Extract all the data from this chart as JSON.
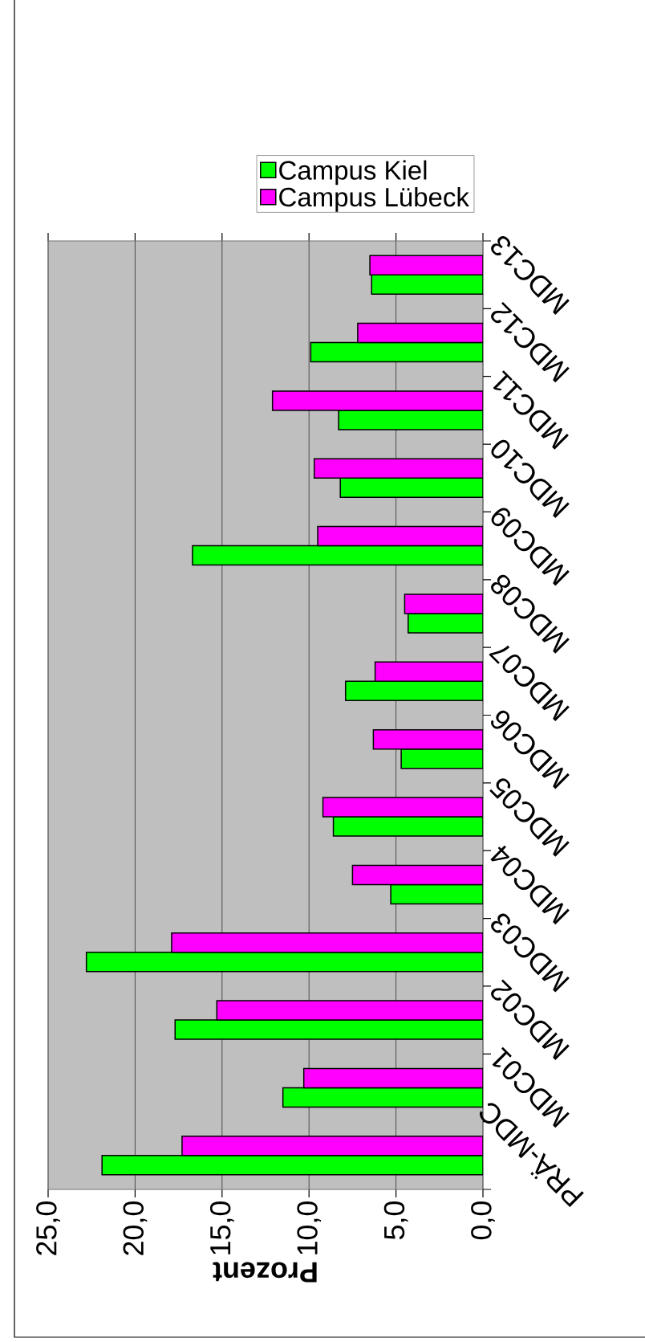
{
  "chart_data": {
    "type": "bar",
    "orientation": "horizontal",
    "xlabel": "Prozent",
    "categories": [
      "MDC13",
      "MDC12",
      "MDC11",
      "MDC10",
      "MDC09",
      "MDC08",
      "MDC07",
      "MDC06",
      "MDC05",
      "MDC04",
      "MDC03",
      "MDC02",
      "MDC01",
      "PRÄ-MDC"
    ],
    "series": [
      {
        "name": "Campus Kiel",
        "color": "#00ff00",
        "values": [
          6.4,
          9.9,
          8.3,
          8.2,
          16.7,
          4.3,
          7.9,
          4.7,
          8.6,
          5.3,
          22.8,
          17.7,
          11.5,
          21.9
        ]
      },
      {
        "name": "Campus Lübeck",
        "color": "#ff00ff",
        "values": [
          6.5,
          7.2,
          12.1,
          9.7,
          9.5,
          4.5,
          6.2,
          6.3,
          9.2,
          7.5,
          17.9,
          15.3,
          10.3,
          17.3
        ]
      }
    ],
    "xlim": [
      25,
      0
    ],
    "xticks": [
      {
        "value": 25,
        "label": "25,0"
      },
      {
        "value": 20,
        "label": "20,0"
      },
      {
        "value": 15,
        "label": "15,0"
      },
      {
        "value": 10,
        "label": "10,0"
      },
      {
        "value": 5,
        "label": "5,0"
      },
      {
        "value": 0,
        "label": "0,0"
      }
    ],
    "grid": "x",
    "legend": "top right"
  }
}
